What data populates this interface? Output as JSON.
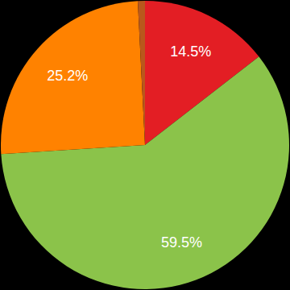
{
  "chart_data": {
    "type": "pie",
    "categories": [
      null,
      null,
      null,
      null
    ],
    "values": [
      14.5,
      59.5,
      25.2,
      0.8
    ],
    "value_labels": [
      "14.5%",
      "59.5%",
      "25.2%",
      null
    ],
    "colors": [
      "#e31e24",
      "#8bc34a",
      "#ff8200",
      "#b9581c"
    ],
    "data_labels": true
  }
}
